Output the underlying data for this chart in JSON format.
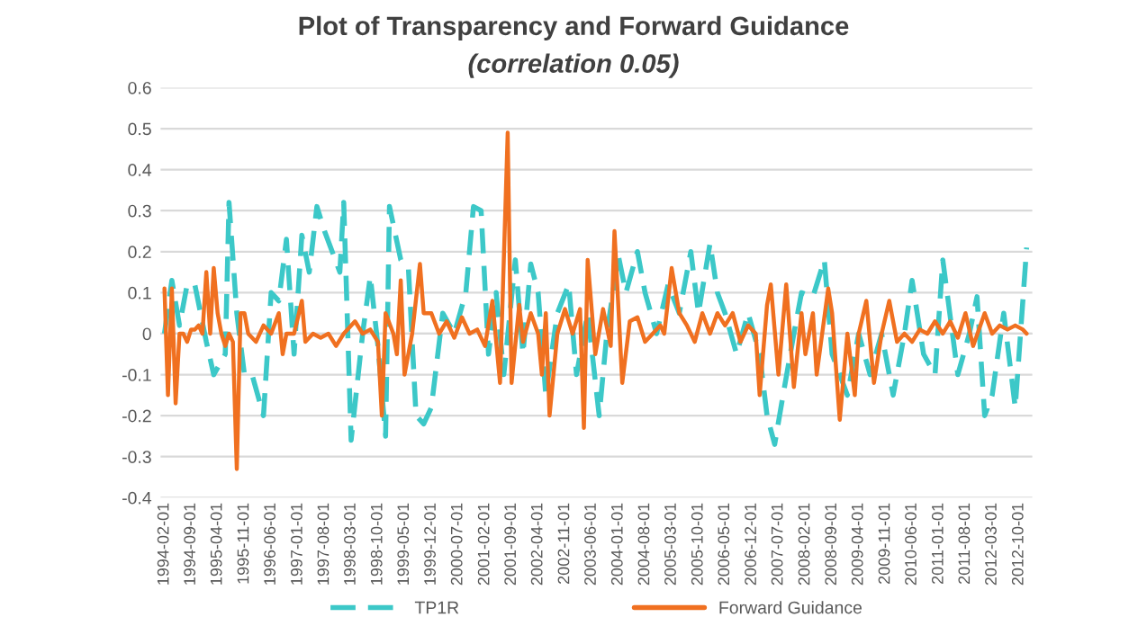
{
  "chart_data": {
    "type": "line",
    "title": "Plot of Transparency and Forward Guidance",
    "subtitle": "(correlation 0.05)",
    "xlim": [
      "1994-01-01",
      "2013-01-15"
    ],
    "xticks": [
      "1994-02-01",
      "1994-09-01",
      "1995-04-01",
      "1995-11-01",
      "1996-06-01",
      "1997-01-01",
      "1997-08-01",
      "1998-03-01",
      "1998-10-01",
      "1999-05-01",
      "1999-12-01",
      "2000-07-01",
      "2001-02-01",
      "2001-09-01",
      "2002-04-01",
      "2002-11-01",
      "2003-06-01",
      "2004-01-01",
      "2004-08-01",
      "2005-03-01",
      "2005-10-01",
      "2006-05-01",
      "2006-12-01",
      "2007-07-01",
      "2008-02-01",
      "2008-09-01",
      "2009-04-01",
      "2009-11-01",
      "2010-06-01",
      "2011-01-01",
      "2011-08-01",
      "2012-03-01",
      "2012-10-01"
    ],
    "ylim": [
      -0.4,
      0.6
    ],
    "yticks": [
      -0.4,
      -0.3,
      -0.2,
      -0.1,
      0,
      0.1,
      0.2,
      0.3,
      0.4,
      0.5,
      0.6
    ],
    "grid": "y",
    "legend": "bottom",
    "series": [
      {
        "name": "TP1R",
        "color": "#3cc8c8",
        "line_style": "dashed",
        "x": [
          "1994-02",
          "1994-04",
          "1994-06",
          "1994-08",
          "1994-10",
          "1995-01",
          "1995-03",
          "1995-06",
          "1995-07",
          "1995-09",
          "1995-11",
          "1996-01",
          "1996-04",
          "1996-06",
          "1996-08",
          "1996-10",
          "1996-12",
          "1997-02",
          "1997-04",
          "1997-06",
          "1997-08",
          "1997-10",
          "1997-12",
          "1998-01",
          "1998-03",
          "1998-06",
          "1998-08",
          "1998-10",
          "1998-12",
          "1999-01",
          "1999-04",
          "1999-06",
          "1999-08",
          "1999-10",
          "1999-12",
          "2000-03",
          "2000-06",
          "2000-09",
          "2000-11",
          "2001-01",
          "2001-03",
          "2001-05",
          "2001-07",
          "2001-10",
          "2001-12",
          "2002-02",
          "2002-04",
          "2002-06",
          "2002-09",
          "2002-12",
          "2003-02",
          "2003-05",
          "2003-08",
          "2003-10",
          "2004-01",
          "2004-03",
          "2004-06",
          "2004-08",
          "2004-11",
          "2005-02",
          "2005-05",
          "2005-08",
          "2005-10",
          "2006-01",
          "2006-03",
          "2006-05",
          "2006-08",
          "2006-11",
          "2007-02",
          "2007-04",
          "2007-06",
          "2007-08",
          "2007-11",
          "2008-01",
          "2008-04",
          "2008-07",
          "2008-09",
          "2009-01",
          "2009-04",
          "2009-07",
          "2009-10",
          "2010-01",
          "2010-04",
          "2010-06",
          "2010-09",
          "2010-12",
          "2011-02",
          "2011-06",
          "2011-09",
          "2011-11",
          "2012-01",
          "2012-03",
          "2012-06",
          "2012-09",
          "2012-12"
        ],
        "values": [
          0.0,
          0.13,
          0.02,
          0.12,
          0.12,
          -0.02,
          -0.1,
          -0.05,
          0.32,
          0.05,
          -0.1,
          -0.1,
          -0.2,
          0.1,
          0.08,
          0.23,
          -0.05,
          0.24,
          0.15,
          0.31,
          0.25,
          0.2,
          0.15,
          0.32,
          -0.26,
          0.0,
          0.14,
          -0.03,
          -0.25,
          0.31,
          0.18,
          0.16,
          -0.2,
          -0.22,
          -0.18,
          0.05,
          0.0,
          0.1,
          0.31,
          0.3,
          -0.05,
          0.1,
          -0.1,
          0.18,
          -0.05,
          0.17,
          0.1,
          -0.15,
          0.05,
          0.12,
          -0.1,
          0.05,
          -0.2,
          0.0,
          0.19,
          0.1,
          0.2,
          0.1,
          0.0,
          0.12,
          0.05,
          0.2,
          0.05,
          0.22,
          0.1,
          0.05,
          -0.05,
          0.05,
          -0.05,
          -0.2,
          -0.27,
          -0.16,
          0.0,
          0.1,
          0.09,
          0.18,
          -0.05,
          -0.15,
          0.0,
          -0.1,
          0.0,
          -0.15,
          0.0,
          0.13,
          -0.05,
          -0.1,
          0.18,
          -0.1,
          0.0,
          0.09,
          -0.2,
          -0.15,
          0.05,
          -0.18,
          0.21
        ]
      },
      {
        "name": "Forward Guidance",
        "color": "#f07020",
        "line_style": "solid",
        "x": [
          "1994-02",
          "1994-03",
          "1994-04",
          "1994-05",
          "1994-06",
          "1994-07",
          "1994-08",
          "1994-09",
          "1994-10",
          "1994-11",
          "1994-12",
          "1995-01",
          "1995-02",
          "1995-03",
          "1995-04",
          "1995-05",
          "1995-06",
          "1995-07",
          "1995-08",
          "1995-09",
          "1995-10",
          "1995-11",
          "1995-12",
          "1996-02",
          "1996-04",
          "1996-06",
          "1996-08",
          "1996-09",
          "1996-10",
          "1996-12",
          "1997-02",
          "1997-03",
          "1997-05",
          "1997-07",
          "1997-09",
          "1997-11",
          "1998-01",
          "1998-04",
          "1998-06",
          "1998-08",
          "1998-10",
          "1998-11",
          "1998-12",
          "1999-02",
          "1999-03",
          "1999-04",
          "1999-05",
          "1999-07",
          "1999-09",
          "1999-10",
          "1999-12",
          "2000-02",
          "2000-04",
          "2000-06",
          "2000-08",
          "2000-10",
          "2000-12",
          "2001-02",
          "2001-04",
          "2001-06",
          "2001-08",
          "2001-09",
          "2001-11",
          "2001-12",
          "2002-02",
          "2002-04",
          "2002-05",
          "2002-06",
          "2002-07",
          "2002-09",
          "2002-11",
          "2003-01",
          "2003-03",
          "2003-04",
          "2003-05",
          "2003-07",
          "2003-09",
          "2003-11",
          "2003-12",
          "2004-02",
          "2004-04",
          "2004-06",
          "2004-08",
          "2004-10",
          "2004-12",
          "2005-01",
          "2005-03",
          "2005-05",
          "2005-07",
          "2005-09",
          "2005-11",
          "2006-01",
          "2006-03",
          "2006-05",
          "2006-07",
          "2006-09",
          "2006-11",
          "2007-01",
          "2007-02",
          "2007-04",
          "2007-05",
          "2007-07",
          "2007-09",
          "2007-11",
          "2008-01",
          "2008-02",
          "2008-04",
          "2008-05",
          "2008-08",
          "2008-09",
          "2008-11",
          "2009-01",
          "2009-03",
          "2009-04",
          "2009-06",
          "2009-08",
          "2009-10",
          "2009-12",
          "2010-02",
          "2010-04",
          "2010-06",
          "2010-08",
          "2010-10",
          "2010-12",
          "2011-02",
          "2011-04",
          "2011-06",
          "2011-08",
          "2011-10",
          "2012-01",
          "2012-03",
          "2012-05",
          "2012-07",
          "2012-09",
          "2012-11",
          "2012-12"
        ],
        "values": [
          0.11,
          -0.15,
          0.11,
          -0.17,
          0.0,
          0.0,
          -0.02,
          0.01,
          0.01,
          0.02,
          0.0,
          0.15,
          0.0,
          0.16,
          0.05,
          0.0,
          -0.03,
          0.0,
          -0.02,
          -0.33,
          0.05,
          0.05,
          0.0,
          -0.02,
          0.02,
          0.0,
          0.05,
          -0.05,
          0.0,
          0.0,
          0.08,
          -0.02,
          0.0,
          -0.01,
          0.0,
          -0.03,
          0.0,
          0.03,
          0.0,
          0.01,
          -0.02,
          -0.2,
          0.05,
          0.0,
          -0.05,
          0.13,
          -0.1,
          0.0,
          0.17,
          0.05,
          0.05,
          0.0,
          0.03,
          -0.01,
          0.04,
          0.0,
          0.01,
          -0.03,
          0.08,
          -0.12,
          0.49,
          -0.12,
          0.07,
          -0.02,
          0.05,
          0.0,
          -0.1,
          0.05,
          -0.2,
          0.0,
          0.06,
          0.0,
          0.06,
          -0.23,
          0.18,
          -0.05,
          0.06,
          -0.03,
          0.25,
          -0.12,
          0.03,
          0.04,
          -0.02,
          0.0,
          0.02,
          0.0,
          0.16,
          0.05,
          0.02,
          -0.02,
          0.05,
          0.0,
          0.05,
          0.02,
          0.05,
          -0.02,
          0.02,
          0.0,
          -0.15,
          0.07,
          0.12,
          -0.1,
          0.12,
          -0.13,
          0.05,
          -0.05,
          0.05,
          -0.1,
          0.11,
          0.05,
          -0.21,
          0.0,
          -0.15,
          0.0,
          0.08,
          -0.12,
          0.0,
          0.08,
          -0.02,
          0.0,
          -0.02,
          0.01,
          0.0,
          0.03,
          0.0,
          0.03,
          -0.01,
          0.05,
          -0.03,
          0.05,
          0.0,
          0.02,
          0.01,
          0.02,
          0.01,
          0.0
        ]
      }
    ]
  }
}
